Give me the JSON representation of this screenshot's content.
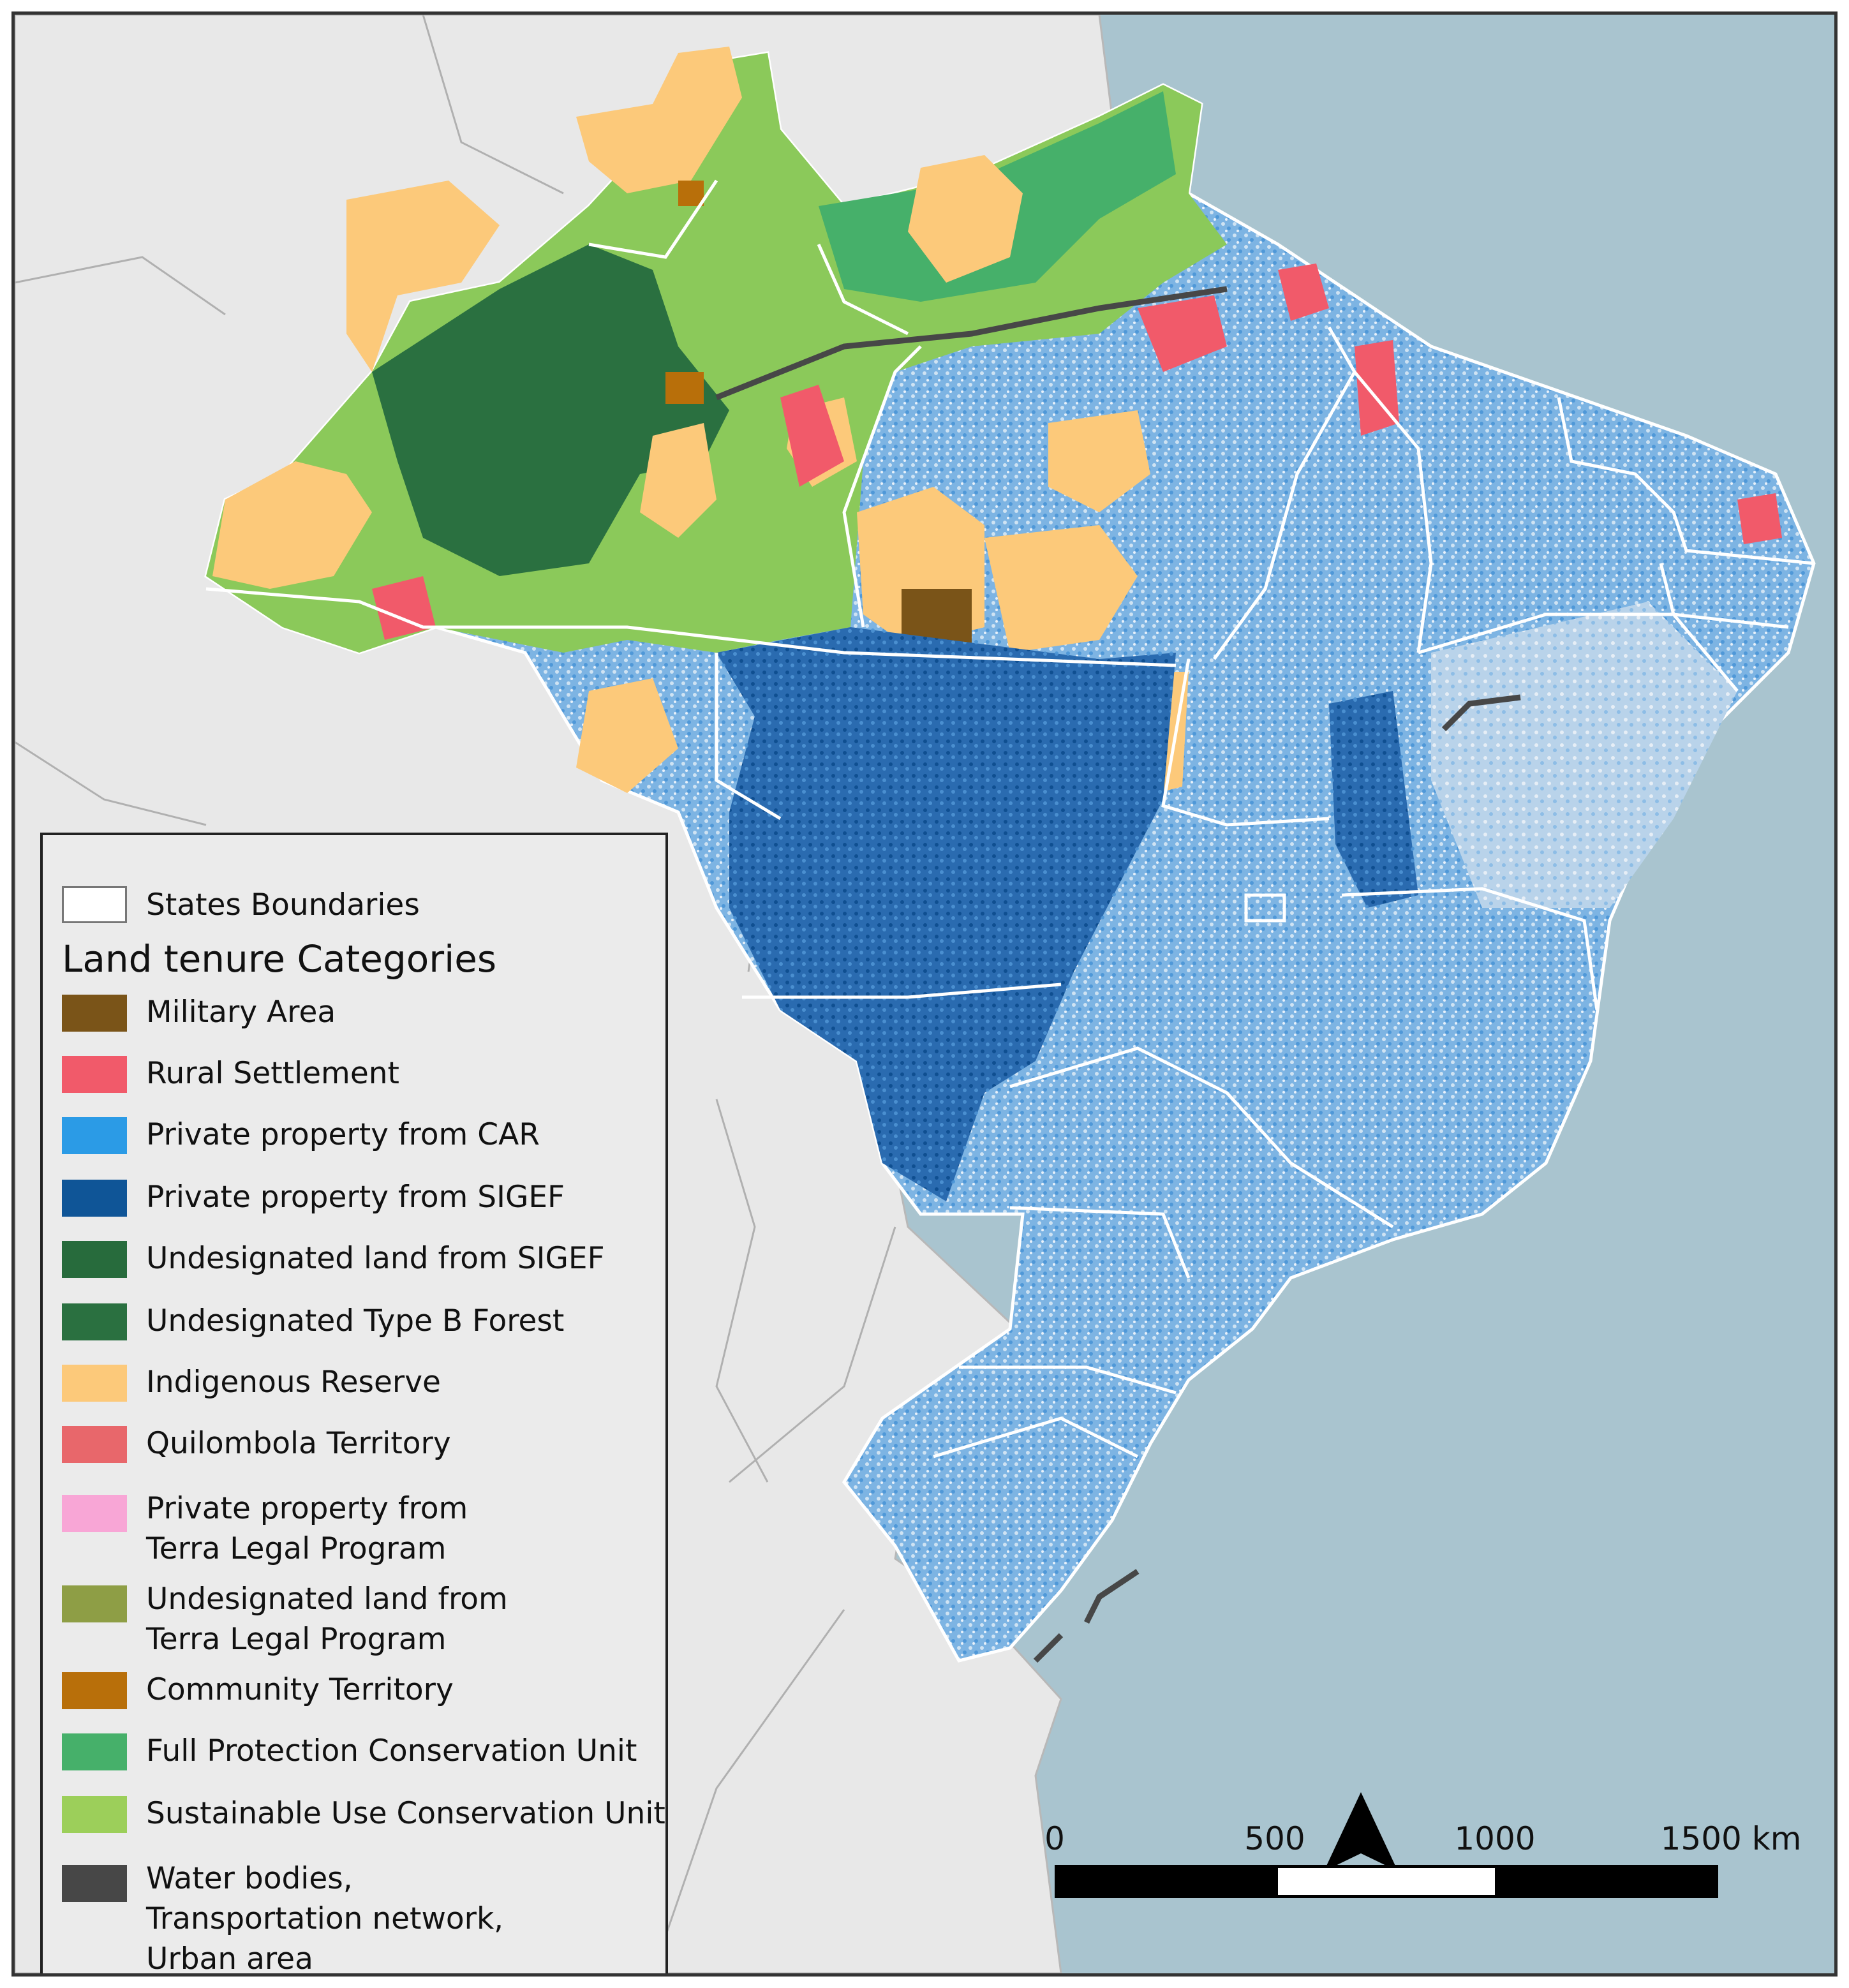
{
  "legend": {
    "states_label": "States Boundaries",
    "title": "Land tenure Categories",
    "items": [
      {
        "label": "Military Area",
        "color": "#7a5418"
      },
      {
        "label": "Rural Settlement",
        "color": "#f15a6a"
      },
      {
        "label": "Private property from CAR",
        "color": "#2b9be6"
      },
      {
        "label": "Private property from SIGEF",
        "color": "#0f5597"
      },
      {
        "label": "Undesignated land from SIGEF",
        "color": "#276b3c"
      },
      {
        "label": "Undesignated Type B Forest",
        "color": "#2a7040"
      },
      {
        "label": "Indigenous Reserve",
        "color": "#fcc97a"
      },
      {
        "label": "Quilombola Territory",
        "color": "#e8676b"
      },
      {
        "label": "Private property from\nTerra Legal Program",
        "color": "#f8a6d6"
      },
      {
        "label": "Undesignated land from\nTerra Legal Program",
        "color": "#8e9e45"
      },
      {
        "label": "Community Territory",
        "color": "#b86f0a"
      },
      {
        "label": "Full Protection Conservation Unit",
        "color": "#46b06a"
      },
      {
        "label": "Sustainable Use Conservation Unit",
        "color": "#9ccf5a"
      },
      {
        "label": "Water bodies,\nTransportation network,\nUrban area",
        "color": "#474747"
      }
    ]
  },
  "scale": {
    "ticks": [
      "0",
      "500",
      "1000",
      "1500 km"
    ]
  },
  "colors": {
    "ocean": "#a9c4cf",
    "neighbor_land": "#e8e8e8",
    "state_boundary": "#ffffff"
  }
}
